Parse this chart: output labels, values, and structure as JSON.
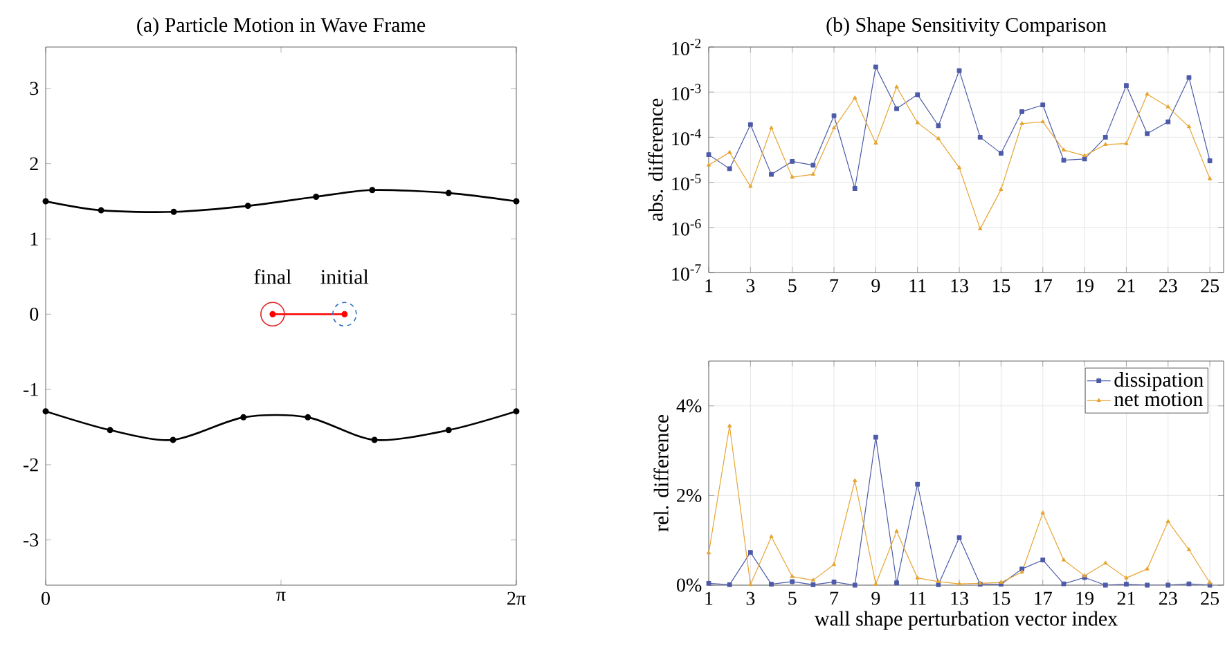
{
  "chart_data": [
    {
      "type": "line",
      "title": "(a) Particle Motion in Wave Frame",
      "xlim": [
        0,
        6.2832
      ],
      "ylim": [
        -3.6,
        3.55
      ],
      "xticks": [
        {
          "value": 0,
          "label": "0"
        },
        {
          "value": 3.1416,
          "label": "π"
        },
        {
          "value": 6.2832,
          "label": "2π"
        }
      ],
      "yticks": [
        -3,
        -2,
        -1,
        0,
        1,
        2,
        3
      ],
      "grid": false,
      "annotations": [
        {
          "text": "final",
          "x": 3.03,
          "y": 0
        },
        {
          "text": "initial",
          "x": 3.99,
          "y": 0
        }
      ],
      "series": [
        {
          "color": "#000000",
          "marker": "circle",
          "x": [
            0,
            0.74,
            1.71,
            2.7,
            3.61,
            4.36,
            5.38,
            6.2832
          ],
          "values": [
            1.5,
            1.38,
            1.36,
            1.44,
            1.56,
            1.65,
            1.61,
            1.5
          ]
        },
        {
          "color": "#000000",
          "marker": "circle",
          "x": [
            0,
            0.86,
            1.7,
            2.64,
            3.5,
            4.39,
            5.38,
            6.2832
          ],
          "values": [
            -1.29,
            -1.54,
            -1.67,
            -1.37,
            -1.37,
            -1.67,
            -1.54,
            -1.29
          ]
        },
        {
          "color": "#ff0000",
          "marker": "circle",
          "x": [
            3.03,
            3.99
          ],
          "values": [
            0,
            0
          ]
        },
        {
          "type": "scatter",
          "color": "#e02020",
          "marker": "circle",
          "x": [
            3.03
          ],
          "values": [
            0
          ]
        },
        {
          "type": "scatter",
          "color": "#3070c0",
          "marker": "circle",
          "line_style": "dashed",
          "x": [
            3.99
          ],
          "values": [
            0
          ]
        }
      ]
    },
    {
      "type": "line",
      "title": "(b) Shape Sensitivity Comparison",
      "ylabel": "abs. difference",
      "log": "y",
      "x": [
        1,
        2,
        3,
        4,
        5,
        6,
        7,
        8,
        9,
        10,
        11,
        12,
        13,
        14,
        15,
        16,
        17,
        18,
        19,
        20,
        21,
        22,
        23,
        24,
        25
      ],
      "xlim": [
        1,
        25.66
      ],
      "ylim": [
        1e-07,
        0.01
      ],
      "xticks": [
        1,
        3,
        5,
        7,
        9,
        11,
        13,
        15,
        17,
        19,
        21,
        23,
        25
      ],
      "yticks": [
        {
          "value": 1e-07,
          "label": "10$^{-7}$"
        },
        {
          "value": 1e-06,
          "label": "10$^{-6}$"
        },
        {
          "value": 1e-05,
          "label": "10$^{-5}$"
        },
        {
          "value": 0.0001,
          "label": "10$^{-4}$"
        },
        {
          "value": 0.001,
          "label": "10$^{-3}$"
        },
        {
          "value": 0.01,
          "label": "10$^{-2}$"
        }
      ],
      "grid": true,
      "series": [
        {
          "color": "#4c5aa8",
          "marker": "square",
          "values": [
            4.1e-05,
            2e-05,
            0.00019,
            1.5e-05,
            2.9e-05,
            2.4e-05,
            0.0003,
            7.3e-06,
            0.0036,
            0.00043,
            0.00088,
            0.00018,
            0.003,
            0.0001,
            4.4e-05,
            0.00037,
            0.00052,
            3.1e-05,
            3.3e-05,
            0.0001,
            0.0014,
            0.00012,
            0.00022,
            0.0021,
            3e-05
          ]
        },
        {
          "color": "#e6a532",
          "marker": "triangle",
          "values": [
            2.4e-05,
            4.6e-05,
            8.1e-06,
            0.00016,
            1.3e-05,
            1.5e-05,
            0.00016,
            0.00074,
            7.4e-05,
            0.0013,
            0.00021,
            9.3e-05,
            2.1e-05,
            9.3e-07,
            6.9e-06,
            0.0002,
            0.00022,
            5.2e-05,
            3.9e-05,
            6.9e-05,
            7.2e-05,
            0.0009,
            0.00047,
            0.00017,
            1.2e-05
          ]
        }
      ]
    },
    {
      "type": "line",
      "xlabel": "wall shape perturbation vector index",
      "ylabel": "rel. difference",
      "x": [
        1,
        2,
        3,
        4,
        5,
        6,
        7,
        8,
        9,
        10,
        11,
        12,
        13,
        14,
        15,
        16,
        17,
        18,
        19,
        20,
        21,
        22,
        23,
        24,
        25
      ],
      "xlim": [
        1,
        25.66
      ],
      "ylim": [
        0,
        5
      ],
      "xticks": [
        1,
        3,
        5,
        7,
        9,
        11,
        13,
        15,
        17,
        19,
        21,
        23,
        25
      ],
      "yticks": [
        {
          "value": 0,
          "label": "0%"
        },
        {
          "value": 2,
          "label": "2%"
        },
        {
          "value": 4,
          "label": "4%"
        }
      ],
      "grid": true,
      "legend": "top right",
      "series": [
        {
          "name": "dissipation",
          "color": "#4c5aa8",
          "marker": "square",
          "values": [
            0.04,
            0.01,
            0.73,
            0.02,
            0.08,
            0.01,
            0.07,
            0,
            3.3,
            0.05,
            2.25,
            0.01,
            1.06,
            0.02,
            0.02,
            0.36,
            0.56,
            0.03,
            0.17,
            0,
            0.02,
            0,
            0,
            0.03,
            0
          ]
        },
        {
          "name": "net motion",
          "color": "#e6a532",
          "marker": "triangle",
          "values": [
            0.72,
            3.55,
            0.01,
            1.08,
            0.19,
            0.11,
            0.46,
            2.33,
            0.02,
            1.2,
            0.16,
            0.08,
            0.03,
            0.04,
            0.06,
            0.29,
            1.61,
            0.56,
            0.21,
            0.49,
            0.16,
            0.36,
            1.42,
            0.79,
            0.05
          ]
        }
      ]
    }
  ]
}
